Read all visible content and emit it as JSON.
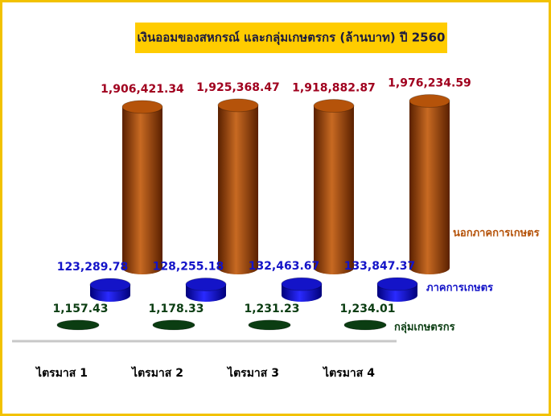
{
  "chart_data": {
    "type": "cylinder3d",
    "title": "เงินออมของสหกรณ์ และกลุ่มเกษตรกร (ล้านบาท) ปี 2560",
    "categories": [
      "ไตรมาส 1",
      "ไตรมาส 2",
      "ไตรมาส 3",
      "ไตรมาส 4"
    ],
    "ylim": [
      0,
      2000000
    ],
    "series": [
      {
        "name": "นอกภาคการเกษตร",
        "color": "#b5530a",
        "label_color": "#a0001e",
        "values": [
          1906421.34,
          1925368.47,
          1918882.87,
          1976234.59
        ],
        "value_labels": [
          "1,906,421.34",
          "1,925,368.47",
          "1,918,882.87",
          "1,976,234.59"
        ]
      },
      {
        "name": "ภาคการเกษตร",
        "color": "#1414c8",
        "label_color": "#1414c8",
        "values": [
          123289.78,
          128255.18,
          132463.67,
          133847.37
        ],
        "value_labels": [
          "123,289.78",
          "128,255.18",
          "132,463.67",
          "133,847.37"
        ]
      },
      {
        "name": "กลุ่มเกษตรกร",
        "color": "#0b3d12",
        "label_color": "#0b3d12",
        "values": [
          1157.43,
          1178.33,
          1231.23,
          1234.01
        ],
        "value_labels": [
          "1,157.43",
          "1,178.33",
          "1,231.23",
          "1,234.01"
        ]
      }
    ]
  }
}
